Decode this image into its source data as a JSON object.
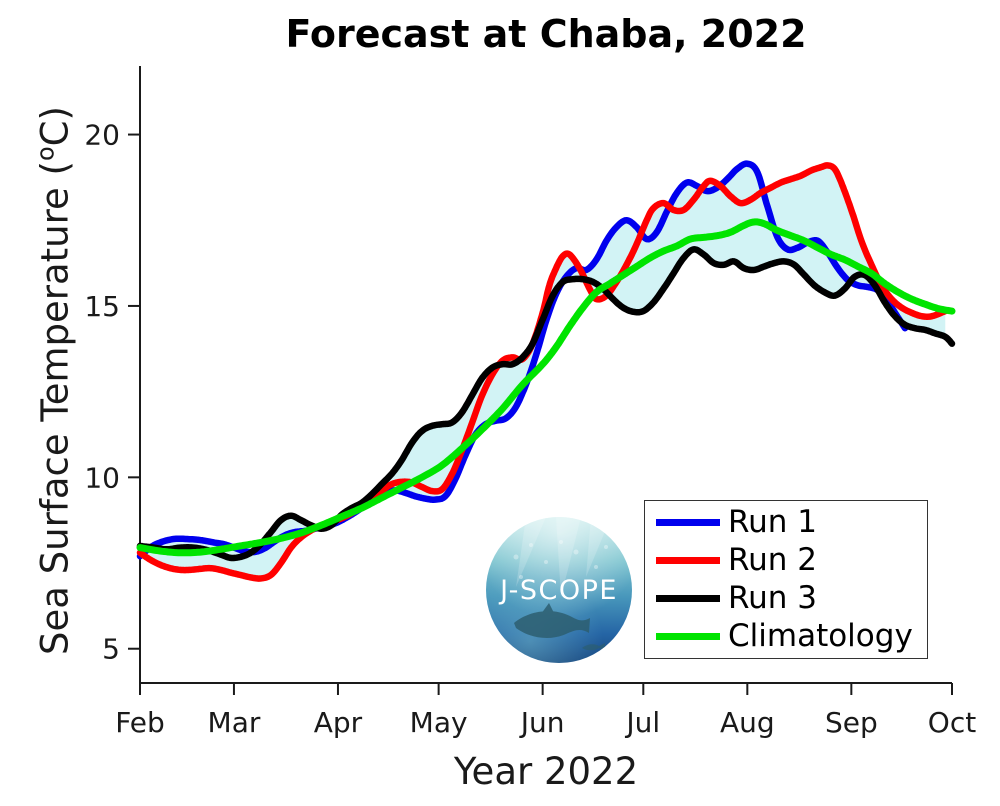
{
  "title": "Forecast at Chaba, 2022",
  "axes": {
    "xlabel": "Year 2022",
    "ylabel_pre": "Sea Surface Temperature (",
    "ylabel_sup": "o",
    "ylabel_post": "C)",
    "x_tick_labels": [
      "Feb",
      "Mar",
      "Apr",
      "May",
      "Jun",
      "Jul",
      "Aug",
      "Sep",
      "Oct"
    ],
    "x_tick_days": [
      0,
      28,
      59,
      89,
      120,
      150,
      181,
      212,
      242
    ],
    "y_ticks": [
      5,
      10,
      15,
      20
    ],
    "y_range": [
      4,
      22
    ],
    "axis_color": "#1a1a1a"
  },
  "legend": {
    "items": [
      {
        "label": "Run 1",
        "color": "#0000ee"
      },
      {
        "label": "Run 2",
        "color": "#ff0000"
      },
      {
        "label": "Run 3",
        "color": "#000000"
      },
      {
        "label": "Climatology",
        "color": "#00e400"
      }
    ]
  },
  "logo": {
    "text": "J-SCOPE"
  },
  "chart_data": {
    "type": "line",
    "title": "Forecast at Chaba, 2022",
    "xlabel": "Year 2022",
    "ylabel": "Sea Surface Temperature (°C)",
    "x_unit": "days since Feb 1, 2022",
    "x_range_days": [
      0,
      242
    ],
    "x_month_ticks": {
      "labels": [
        "Feb",
        "Mar",
        "Apr",
        "May",
        "Jun",
        "Jul",
        "Aug",
        "Sep",
        "Oct"
      ],
      "days": [
        0,
        28,
        59,
        89,
        120,
        150,
        181,
        212,
        242
      ]
    },
    "ylim": [
      4,
      22
    ],
    "grid": false,
    "legend_position": "lower right",
    "fill_envelope": {
      "color": "#d2f3f5",
      "between": "min and max of Run 1-3",
      "day_range": [
        0,
        240
      ]
    },
    "series": [
      {
        "name": "Run 1",
        "color": "#0000ee",
        "width": 6.5,
        "points": [
          [
            0,
            7.7
          ],
          [
            3,
            7.95
          ],
          [
            6,
            8.1
          ],
          [
            10,
            8.2
          ],
          [
            14,
            8.2
          ],
          [
            18,
            8.17
          ],
          [
            22,
            8.1
          ],
          [
            25,
            8.05
          ],
          [
            28,
            7.95
          ],
          [
            31,
            7.85
          ],
          [
            34,
            7.82
          ],
          [
            37,
            7.92
          ],
          [
            40,
            8.12
          ],
          [
            43,
            8.3
          ],
          [
            46,
            8.4
          ],
          [
            50,
            8.45
          ],
          [
            54,
            8.55
          ],
          [
            58,
            8.65
          ],
          [
            62,
            8.85
          ],
          [
            66,
            9.1
          ],
          [
            70,
            9.4
          ],
          [
            73,
            9.55
          ],
          [
            76,
            9.62
          ],
          [
            79,
            9.55
          ],
          [
            82,
            9.45
          ],
          [
            85,
            9.38
          ],
          [
            88,
            9.35
          ],
          [
            91,
            9.45
          ],
          [
            94,
            9.95
          ],
          [
            97,
            10.65
          ],
          [
            100,
            11.25
          ],
          [
            103,
            11.55
          ],
          [
            106,
            11.65
          ],
          [
            109,
            11.72
          ],
          [
            112,
            12.05
          ],
          [
            115,
            12.7
          ],
          [
            118,
            13.55
          ],
          [
            121,
            14.55
          ],
          [
            124,
            15.35
          ],
          [
            127,
            15.85
          ],
          [
            130,
            16.1
          ],
          [
            133,
            16.05
          ],
          [
            136,
            16.35
          ],
          [
            139,
            16.9
          ],
          [
            142,
            17.3
          ],
          [
            145,
            17.5
          ],
          [
            148,
            17.3
          ],
          [
            151,
            16.95
          ],
          [
            154,
            17.15
          ],
          [
            157,
            17.75
          ],
          [
            160,
            18.3
          ],
          [
            163,
            18.6
          ],
          [
            166,
            18.5
          ],
          [
            169,
            18.35
          ],
          [
            172,
            18.45
          ],
          [
            175,
            18.7
          ],
          [
            178,
            19.0
          ],
          [
            181,
            19.15
          ],
          [
            184,
            18.9
          ],
          [
            187,
            17.9
          ],
          [
            190,
            17.0
          ],
          [
            193,
            16.65
          ],
          [
            196,
            16.7
          ],
          [
            199,
            16.85
          ],
          [
            202,
            16.9
          ],
          [
            205,
            16.55
          ],
          [
            208,
            16.1
          ],
          [
            211,
            15.75
          ],
          [
            214,
            15.6
          ],
          [
            217,
            15.55
          ],
          [
            220,
            15.45
          ],
          [
            223,
            15.1
          ],
          [
            226,
            14.65
          ],
          [
            228,
            14.35
          ]
        ]
      },
      {
        "name": "Run 2",
        "color": "#ff0000",
        "width": 6.5,
        "points": [
          [
            0,
            7.8
          ],
          [
            3,
            7.6
          ],
          [
            6,
            7.45
          ],
          [
            9,
            7.35
          ],
          [
            12,
            7.3
          ],
          [
            15,
            7.3
          ],
          [
            18,
            7.33
          ],
          [
            21,
            7.35
          ],
          [
            24,
            7.3
          ],
          [
            27,
            7.22
          ],
          [
            30,
            7.15
          ],
          [
            33,
            7.08
          ],
          [
            36,
            7.05
          ],
          [
            39,
            7.15
          ],
          [
            42,
            7.5
          ],
          [
            45,
            7.95
          ],
          [
            48,
            8.25
          ],
          [
            51,
            8.45
          ],
          [
            54,
            8.6
          ],
          [
            57,
            8.7
          ],
          [
            60,
            8.8
          ],
          [
            63,
            8.95
          ],
          [
            66,
            9.15
          ],
          [
            69,
            9.35
          ],
          [
            72,
            9.6
          ],
          [
            75,
            9.8
          ],
          [
            78,
            9.87
          ],
          [
            81,
            9.85
          ],
          [
            84,
            9.72
          ],
          [
            87,
            9.6
          ],
          [
            90,
            9.65
          ],
          [
            93,
            10.1
          ],
          [
            96,
            10.8
          ],
          [
            99,
            11.6
          ],
          [
            102,
            12.4
          ],
          [
            105,
            13.0
          ],
          [
            108,
            13.4
          ],
          [
            111,
            13.5
          ],
          [
            114,
            13.45
          ],
          [
            117,
            13.9
          ],
          [
            120,
            14.8
          ],
          [
            122,
            15.6
          ],
          [
            124,
            16.1
          ],
          [
            126,
            16.45
          ],
          [
            128,
            16.5
          ],
          [
            131,
            16.1
          ],
          [
            134,
            15.5
          ],
          [
            136,
            15.2
          ],
          [
            139,
            15.3
          ],
          [
            142,
            15.7
          ],
          [
            145,
            16.2
          ],
          [
            148,
            16.8
          ],
          [
            151,
            17.5
          ],
          [
            153,
            17.85
          ],
          [
            156,
            18.0
          ],
          [
            159,
            17.8
          ],
          [
            162,
            17.8
          ],
          [
            165,
            18.1
          ],
          [
            168,
            18.5
          ],
          [
            170,
            18.65
          ],
          [
            173,
            18.5
          ],
          [
            176,
            18.2
          ],
          [
            179,
            18.0
          ],
          [
            182,
            18.1
          ],
          [
            185,
            18.3
          ],
          [
            188,
            18.45
          ],
          [
            191,
            18.6
          ],
          [
            194,
            18.7
          ],
          [
            197,
            18.8
          ],
          [
            200,
            18.95
          ],
          [
            203,
            19.05
          ],
          [
            205,
            19.1
          ],
          [
            207,
            19.0
          ],
          [
            209,
            18.6
          ],
          [
            212,
            17.8
          ],
          [
            215,
            16.9
          ],
          [
            218,
            16.2
          ],
          [
            221,
            15.6
          ],
          [
            224,
            15.2
          ],
          [
            227,
            14.95
          ],
          [
            230,
            14.8
          ],
          [
            233,
            14.7
          ],
          [
            236,
            14.7
          ],
          [
            240,
            14.85
          ]
        ]
      },
      {
        "name": "Run 3",
        "color": "#000000",
        "width": 6.5,
        "points": [
          [
            0,
            8.0
          ],
          [
            4,
            7.95
          ],
          [
            8,
            7.9
          ],
          [
            12,
            7.95
          ],
          [
            16,
            7.95
          ],
          [
            20,
            7.88
          ],
          [
            24,
            7.75
          ],
          [
            27,
            7.65
          ],
          [
            30,
            7.68
          ],
          [
            33,
            7.8
          ],
          [
            36,
            8.05
          ],
          [
            39,
            8.4
          ],
          [
            42,
            8.75
          ],
          [
            45,
            8.88
          ],
          [
            48,
            8.75
          ],
          [
            51,
            8.6
          ],
          [
            54,
            8.5
          ],
          [
            57,
            8.6
          ],
          [
            60,
            8.9
          ],
          [
            63,
            9.1
          ],
          [
            66,
            9.25
          ],
          [
            69,
            9.5
          ],
          [
            72,
            9.8
          ],
          [
            75,
            10.1
          ],
          [
            78,
            10.5
          ],
          [
            81,
            11.0
          ],
          [
            84,
            11.35
          ],
          [
            87,
            11.5
          ],
          [
            90,
            11.55
          ],
          [
            93,
            11.6
          ],
          [
            96,
            11.9
          ],
          [
            99,
            12.4
          ],
          [
            102,
            12.9
          ],
          [
            105,
            13.2
          ],
          [
            108,
            13.3
          ],
          [
            111,
            13.3
          ],
          [
            114,
            13.5
          ],
          [
            117,
            13.9
          ],
          [
            120,
            14.6
          ],
          [
            123,
            15.3
          ],
          [
            126,
            15.7
          ],
          [
            129,
            15.78
          ],
          [
            132,
            15.78
          ],
          [
            135,
            15.7
          ],
          [
            138,
            15.5
          ],
          [
            141,
            15.2
          ],
          [
            144,
            14.95
          ],
          [
            147,
            14.83
          ],
          [
            150,
            14.85
          ],
          [
            153,
            15.1
          ],
          [
            156,
            15.5
          ],
          [
            159,
            15.95
          ],
          [
            162,
            16.4
          ],
          [
            165,
            16.65
          ],
          [
            168,
            16.5
          ],
          [
            171,
            16.25
          ],
          [
            174,
            16.2
          ],
          [
            177,
            16.3
          ],
          [
            180,
            16.1
          ],
          [
            183,
            16.05
          ],
          [
            186,
            16.15
          ],
          [
            189,
            16.25
          ],
          [
            192,
            16.3
          ],
          [
            195,
            16.2
          ],
          [
            198,
            15.9
          ],
          [
            201,
            15.6
          ],
          [
            204,
            15.4
          ],
          [
            207,
            15.3
          ],
          [
            210,
            15.5
          ],
          [
            213,
            15.85
          ],
          [
            216,
            15.9
          ],
          [
            219,
            15.6
          ],
          [
            222,
            15.1
          ],
          [
            225,
            14.7
          ],
          [
            228,
            14.45
          ],
          [
            231,
            14.35
          ],
          [
            234,
            14.3
          ],
          [
            237,
            14.2
          ],
          [
            240,
            14.1
          ],
          [
            242,
            13.9
          ]
        ]
      },
      {
        "name": "Climatology",
        "color": "#00e400",
        "width": 7,
        "points": [
          [
            0,
            7.95
          ],
          [
            6,
            7.85
          ],
          [
            12,
            7.8
          ],
          [
            18,
            7.82
          ],
          [
            24,
            7.9
          ],
          [
            30,
            8.0
          ],
          [
            36,
            8.1
          ],
          [
            42,
            8.22
          ],
          [
            48,
            8.38
          ],
          [
            54,
            8.6
          ],
          [
            60,
            8.85
          ],
          [
            66,
            9.1
          ],
          [
            72,
            9.4
          ],
          [
            78,
            9.7
          ],
          [
            84,
            10.0
          ],
          [
            90,
            10.35
          ],
          [
            96,
            10.85
          ],
          [
            102,
            11.4
          ],
          [
            108,
            12.0
          ],
          [
            114,
            12.7
          ],
          [
            120,
            13.3
          ],
          [
            124,
            13.8
          ],
          [
            128,
            14.4
          ],
          [
            132,
            14.95
          ],
          [
            136,
            15.4
          ],
          [
            140,
            15.65
          ],
          [
            144,
            15.9
          ],
          [
            148,
            16.15
          ],
          [
            152,
            16.4
          ],
          [
            156,
            16.6
          ],
          [
            160,
            16.75
          ],
          [
            164,
            16.95
          ],
          [
            168,
            17.0
          ],
          [
            172,
            17.05
          ],
          [
            176,
            17.15
          ],
          [
            180,
            17.35
          ],
          [
            183,
            17.45
          ],
          [
            186,
            17.4
          ],
          [
            190,
            17.2
          ],
          [
            194,
            17.05
          ],
          [
            198,
            16.9
          ],
          [
            202,
            16.7
          ],
          [
            206,
            16.5
          ],
          [
            210,
            16.35
          ],
          [
            214,
            16.15
          ],
          [
            218,
            15.95
          ],
          [
            222,
            15.65
          ],
          [
            226,
            15.4
          ],
          [
            230,
            15.2
          ],
          [
            234,
            15.05
          ],
          [
            238,
            14.92
          ],
          [
            242,
            14.85
          ]
        ]
      }
    ]
  }
}
